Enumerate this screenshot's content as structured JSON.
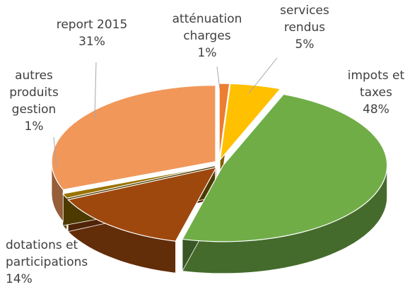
{
  "chart_data": {
    "type": "pie3d",
    "categories": [
      "atténuation\ncharges",
      "services\nrendus",
      "impots et\ntaxes",
      "dotations et\nparticipations",
      "autres\nproduits\ngestion",
      "report 2015"
    ],
    "values": [
      1,
      5,
      48,
      14,
      1,
      31
    ],
    "value_labels": [
      "1%",
      "5%",
      "48%",
      "14%",
      "1%",
      "31%"
    ],
    "colors": [
      "#ed7d31",
      "#ffc000",
      "#70ad47",
      "#9e480e",
      "#997300",
      "#f1975a"
    ]
  }
}
